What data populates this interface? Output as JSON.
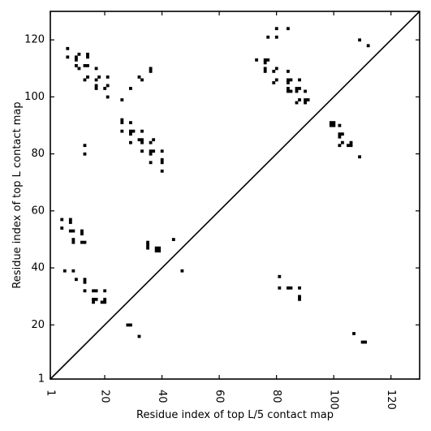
{
  "chart_data": {
    "type": "scatter",
    "title": "",
    "xlabel": "Residue index of top L/5 contact map",
    "ylabel": "Residue index of top L contact map",
    "xlim": [
      1,
      130
    ],
    "ylim": [
      1,
      130
    ],
    "x_ticks": [
      1,
      20,
      40,
      60,
      80,
      100,
      120
    ],
    "y_ticks": [
      1,
      20,
      40,
      60,
      80,
      100,
      120
    ],
    "x_tick_rotation": 90,
    "grid": false,
    "legend": "none",
    "marker": "square",
    "marker_color": "#000000",
    "diagonal": {
      "from": [
        1,
        1
      ],
      "to": [
        130,
        130
      ],
      "color": "#000000"
    },
    "series": [
      {
        "name": "",
        "points": [
          [
            7,
            117
          ],
          [
            7,
            114
          ],
          [
            10,
            114
          ],
          [
            11,
            115
          ],
          [
            10,
            113
          ],
          [
            10,
            111
          ],
          [
            11,
            110
          ],
          [
            13,
            111
          ],
          [
            14,
            111
          ],
          [
            14,
            115
          ],
          [
            14,
            114
          ],
          [
            17,
            110
          ],
          [
            13,
            106
          ],
          [
            14,
            107
          ],
          [
            17,
            106
          ],
          [
            18,
            107
          ],
          [
            17,
            104
          ],
          [
            17,
            103
          ],
          [
            20,
            103
          ],
          [
            21,
            104
          ],
          [
            21,
            107
          ],
          [
            21,
            100
          ],
          [
            26,
            99
          ],
          [
            29,
            103
          ],
          [
            32,
            107
          ],
          [
            33,
            106
          ],
          [
            36,
            110
          ],
          [
            36,
            109
          ],
          [
            26,
            92
          ],
          [
            26,
            91
          ],
          [
            26,
            88
          ],
          [
            29,
            91
          ],
          [
            29,
            88
          ],
          [
            30,
            88
          ],
          [
            29,
            87
          ],
          [
            29,
            84
          ],
          [
            33,
            88
          ],
          [
            32,
            85
          ],
          [
            33,
            85
          ],
          [
            33,
            84
          ],
          [
            36,
            84
          ],
          [
            37,
            85
          ],
          [
            33,
            81
          ],
          [
            36,
            81
          ],
          [
            37,
            81
          ],
          [
            36,
            80
          ],
          [
            40,
            81
          ],
          [
            40,
            78
          ],
          [
            40,
            77
          ],
          [
            36,
            77
          ],
          [
            40,
            74
          ],
          [
            13,
            83
          ],
          [
            13,
            80
          ],
          [
            5,
            57
          ],
          [
            5,
            54
          ],
          [
            8,
            57
          ],
          [
            8,
            56
          ],
          [
            8,
            53
          ],
          [
            9,
            53
          ],
          [
            9,
            50
          ],
          [
            9,
            49
          ],
          [
            12,
            53
          ],
          [
            12,
            52
          ],
          [
            12,
            49
          ],
          [
            13,
            49
          ],
          [
            35,
            49
          ],
          [
            35,
            48
          ],
          [
            35,
            47
          ],
          [
            38,
            47
          ],
          [
            39,
            47
          ],
          [
            38,
            46
          ],
          [
            39,
            46
          ],
          [
            44,
            50
          ],
          [
            6,
            39
          ],
          [
            9,
            39
          ],
          [
            47,
            39
          ],
          [
            10,
            36
          ],
          [
            13,
            36
          ],
          [
            13,
            35
          ],
          [
            13,
            32
          ],
          [
            16,
            32
          ],
          [
            17,
            32
          ],
          [
            20,
            32
          ],
          [
            16,
            29
          ],
          [
            17,
            29
          ],
          [
            19,
            28
          ],
          [
            20,
            29
          ],
          [
            20,
            28
          ],
          [
            16,
            28
          ],
          [
            28,
            20
          ],
          [
            29,
            20
          ],
          [
            32,
            16
          ],
          [
            77,
            121
          ],
          [
            80,
            124
          ],
          [
            80,
            121
          ],
          [
            84,
            124
          ],
          [
            73,
            113
          ],
          [
            76,
            113
          ],
          [
            77,
            113
          ],
          [
            76,
            112
          ],
          [
            76,
            110
          ],
          [
            76,
            109
          ],
          [
            80,
            110
          ],
          [
            79,
            109
          ],
          [
            84,
            109
          ],
          [
            80,
            106
          ],
          [
            79,
            105
          ],
          [
            84,
            106
          ],
          [
            85,
            106
          ],
          [
            84,
            105
          ],
          [
            88,
            106
          ],
          [
            84,
            103
          ],
          [
            84,
            102
          ],
          [
            85,
            102
          ],
          [
            87,
            103
          ],
          [
            88,
            103
          ],
          [
            87,
            102
          ],
          [
            90,
            102
          ],
          [
            88,
            99
          ],
          [
            87,
            98
          ],
          [
            90,
            99
          ],
          [
            90,
            98
          ],
          [
            91,
            99
          ],
          [
            99,
            91
          ],
          [
            99,
            90
          ],
          [
            100,
            91
          ],
          [
            100,
            90
          ],
          [
            102,
            90
          ],
          [
            102,
            87
          ],
          [
            103,
            87
          ],
          [
            102,
            86
          ],
          [
            103,
            84
          ],
          [
            106,
            84
          ],
          [
            105,
            83
          ],
          [
            106,
            83
          ],
          [
            102,
            83
          ],
          [
            109,
            79
          ],
          [
            109,
            120
          ],
          [
            112,
            118
          ],
          [
            81,
            37
          ],
          [
            81,
            33
          ],
          [
            84,
            33
          ],
          [
            85,
            33
          ],
          [
            88,
            33
          ],
          [
            88,
            30
          ],
          [
            88,
            29
          ],
          [
            107,
            17
          ],
          [
            110,
            14
          ],
          [
            111,
            14
          ]
        ]
      }
    ]
  }
}
